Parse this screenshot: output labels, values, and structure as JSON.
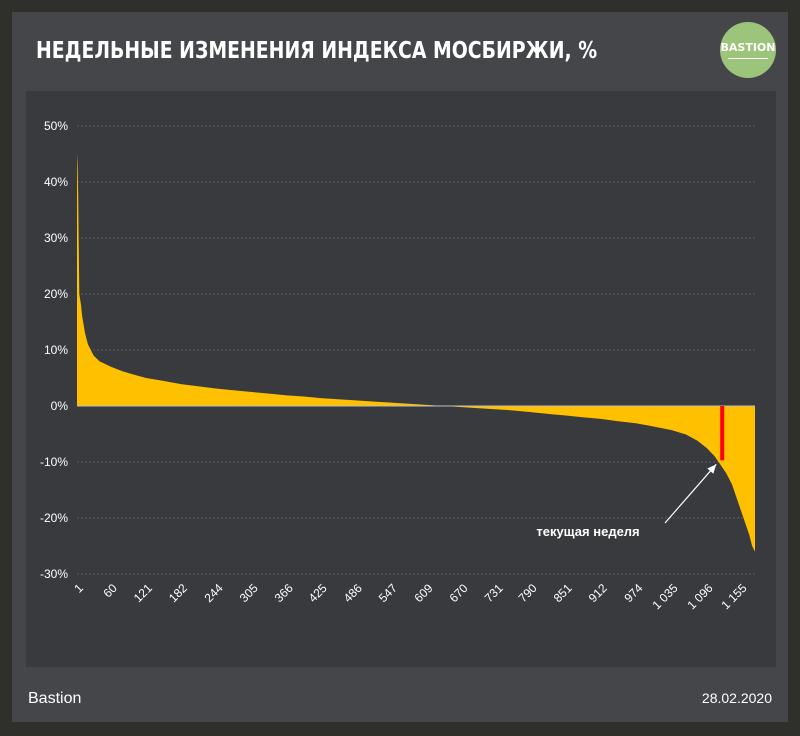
{
  "header": {
    "title": "НЕДЕЛЬНЫЕ ИЗМЕНЕНИЯ ИНДЕКСА МОСБИРЖИ, %",
    "logo_text": "BASTION"
  },
  "footer": {
    "source": "Bastion",
    "date": "28.02.2020"
  },
  "colors": {
    "bars": "#ffc000",
    "highlight": "#ff0000",
    "grid": "#5c5d60",
    "text": "#ffffff"
  },
  "chart_data": {
    "type": "area",
    "title": "НЕДЕЛЬНЫЕ ИЗМЕНЕНИЯ ИНДЕКСА МОСБИРЖИ, %",
    "xlabel": "",
    "ylabel": "",
    "xlim": [
      1,
      1180
    ],
    "ylim": [
      -30,
      50
    ],
    "y_ticks": [
      "50%",
      "40%",
      "30%",
      "20%",
      "10%",
      "0%",
      "-10%",
      "-20%",
      "-30%"
    ],
    "y_tick_values": [
      50,
      40,
      30,
      20,
      10,
      0,
      -10,
      -20,
      -30
    ],
    "x_ticks": [
      "1",
      "60",
      "121",
      "182",
      "244",
      "305",
      "366",
      "425",
      "486",
      "547",
      "609",
      "670",
      "731",
      "790",
      "851",
      "912",
      "974",
      "1 035",
      "1 096",
      "1 155"
    ],
    "x_tick_values": [
      1,
      60,
      121,
      182,
      244,
      305,
      366,
      425,
      486,
      547,
      609,
      670,
      731,
      790,
      851,
      912,
      974,
      1035,
      1096,
      1155
    ],
    "grid": true,
    "series": [
      {
        "x": [
          1,
          2,
          3,
          5,
          8,
          10,
          15,
          20,
          30,
          40,
          50,
          60,
          80,
          100,
          121,
          150,
          182,
          213,
          244,
          275,
          305,
          335,
          366,
          395,
          425,
          455,
          486,
          515,
          547,
          578,
          609,
          640,
          670,
          700,
          731,
          760,
          790,
          820,
          851,
          880,
          912,
          940,
          974,
          1000,
          1035,
          1060,
          1080,
          1096,
          1110,
          1120,
          1130,
          1140,
          1150,
          1160,
          1170,
          1175,
          1180
        ],
        "values": [
          45,
          43,
          38,
          20,
          18,
          16,
          13,
          11,
          9,
          8,
          7.5,
          7,
          6.2,
          5.6,
          5,
          4.5,
          3.9,
          3.5,
          3.1,
          2.8,
          2.5,
          2.2,
          1.9,
          1.7,
          1.4,
          1.2,
          1,
          0.8,
          0.6,
          0.4,
          0.2,
          0,
          -0.2,
          -0.4,
          -0.6,
          -0.8,
          -1.1,
          -1.4,
          -1.7,
          -2,
          -2.3,
          -2.7,
          -3.1,
          -3.6,
          -4.3,
          -5.1,
          -6.2,
          -7.5,
          -9,
          -10.5,
          -12,
          -14,
          -17,
          -20,
          -23,
          -25,
          -26
        ]
      }
    ],
    "highlight": {
      "x": 1123,
      "value": -9.7
    },
    "annotation": "текущая неделя"
  }
}
